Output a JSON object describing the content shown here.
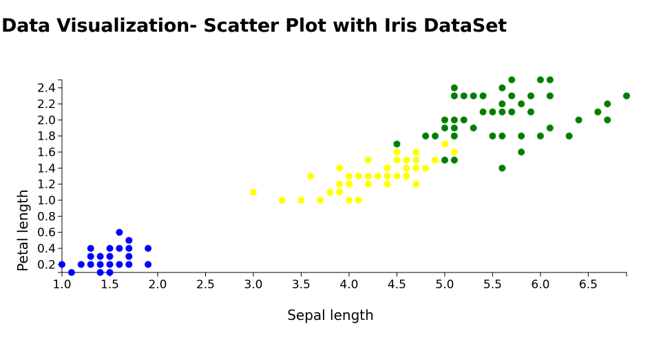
{
  "page": {
    "title": "Data Visualization- Scatter Plot with Iris DataSet"
  },
  "colors": {
    "setosa": "#0000ff",
    "versicolor": "#ffff00",
    "virginica": "#008000",
    "axis": "#000000"
  },
  "chart_data": {
    "type": "scatter",
    "title": "Data Visualization- Scatter Plot with Iris DataSet",
    "xlabel": "Sepal length",
    "ylabel": "Petal length",
    "xlim": [
      1.0,
      6.9
    ],
    "ylim": [
      0.1,
      2.5
    ],
    "x_ticks": [
      "1.0",
      "1.5",
      "2.0",
      "2.5",
      "3.0",
      "3.5",
      "4.0",
      "4.5",
      "5.0",
      "5.5",
      "6.0",
      "6.5"
    ],
    "y_ticks": [
      "0.2",
      "0.4",
      "0.6",
      "0.8",
      "1.0",
      "1.2",
      "1.4",
      "1.6",
      "1.8",
      "2.0",
      "2.2",
      "2.4"
    ],
    "grid": false,
    "legend": "none",
    "series": [
      {
        "color": "#0000ff",
        "points": [
          [
            1.0,
            0.2
          ],
          [
            1.1,
            0.1
          ],
          [
            1.2,
            0.2
          ],
          [
            1.3,
            0.2
          ],
          [
            1.3,
            0.3
          ],
          [
            1.3,
            0.4
          ],
          [
            1.4,
            0.1
          ],
          [
            1.4,
            0.2
          ],
          [
            1.4,
            0.3
          ],
          [
            1.5,
            0.1
          ],
          [
            1.5,
            0.2
          ],
          [
            1.5,
            0.3
          ],
          [
            1.5,
            0.4
          ],
          [
            1.6,
            0.2
          ],
          [
            1.6,
            0.4
          ],
          [
            1.6,
            0.6
          ],
          [
            1.7,
            0.2
          ],
          [
            1.7,
            0.3
          ],
          [
            1.7,
            0.4
          ],
          [
            1.7,
            0.5
          ],
          [
            1.9,
            0.2
          ],
          [
            1.9,
            0.4
          ]
        ]
      },
      {
        "color": "#ffff00",
        "points": [
          [
            3.0,
            1.1
          ],
          [
            3.3,
            1.0
          ],
          [
            3.5,
            1.0
          ],
          [
            3.6,
            1.3
          ],
          [
            3.7,
            1.0
          ],
          [
            3.8,
            1.1
          ],
          [
            3.9,
            1.1
          ],
          [
            3.9,
            1.2
          ],
          [
            3.9,
            1.4
          ],
          [
            4.0,
            1.0
          ],
          [
            4.0,
            1.2
          ],
          [
            4.0,
            1.3
          ],
          [
            4.1,
            1.0
          ],
          [
            4.1,
            1.3
          ],
          [
            4.2,
            1.2
          ],
          [
            4.2,
            1.3
          ],
          [
            4.2,
            1.5
          ],
          [
            4.3,
            1.3
          ],
          [
            4.4,
            1.2
          ],
          [
            4.4,
            1.3
          ],
          [
            4.4,
            1.4
          ],
          [
            4.5,
            1.3
          ],
          [
            4.5,
            1.5
          ],
          [
            4.5,
            1.6
          ],
          [
            4.6,
            1.3
          ],
          [
            4.6,
            1.4
          ],
          [
            4.6,
            1.5
          ],
          [
            4.7,
            1.2
          ],
          [
            4.7,
            1.4
          ],
          [
            4.7,
            1.5
          ],
          [
            4.7,
            1.6
          ],
          [
            4.8,
            1.4
          ],
          [
            4.9,
            1.5
          ],
          [
            5.0,
            1.7
          ],
          [
            5.1,
            1.6
          ]
        ]
      },
      {
        "color": "#008000",
        "points": [
          [
            4.5,
            1.7
          ],
          [
            4.8,
            1.8
          ],
          [
            4.9,
            1.8
          ],
          [
            5.0,
            1.5
          ],
          [
            5.0,
            1.9
          ],
          [
            5.0,
            2.0
          ],
          [
            5.1,
            1.5
          ],
          [
            5.1,
            1.8
          ],
          [
            5.1,
            1.9
          ],
          [
            5.1,
            2.0
          ],
          [
            5.1,
            2.3
          ],
          [
            5.1,
            2.4
          ],
          [
            5.2,
            2.0
          ],
          [
            5.2,
            2.3
          ],
          [
            5.3,
            1.9
          ],
          [
            5.3,
            2.3
          ],
          [
            5.4,
            2.1
          ],
          [
            5.4,
            2.3
          ],
          [
            5.5,
            1.8
          ],
          [
            5.5,
            2.1
          ],
          [
            5.6,
            1.4
          ],
          [
            5.6,
            1.8
          ],
          [
            5.6,
            2.1
          ],
          [
            5.6,
            2.2
          ],
          [
            5.6,
            2.4
          ],
          [
            5.7,
            2.1
          ],
          [
            5.7,
            2.3
          ],
          [
            5.7,
            2.5
          ],
          [
            5.8,
            1.6
          ],
          [
            5.8,
            1.8
          ],
          [
            5.8,
            2.2
          ],
          [
            5.9,
            2.1
          ],
          [
            5.9,
            2.3
          ],
          [
            6.0,
            1.8
          ],
          [
            6.0,
            2.5
          ],
          [
            6.1,
            1.9
          ],
          [
            6.1,
            2.3
          ],
          [
            6.1,
            2.5
          ],
          [
            6.3,
            1.8
          ],
          [
            6.4,
            2.0
          ],
          [
            6.6,
            2.1
          ],
          [
            6.7,
            2.0
          ],
          [
            6.7,
            2.2
          ],
          [
            6.9,
            2.3
          ]
        ]
      }
    ]
  }
}
